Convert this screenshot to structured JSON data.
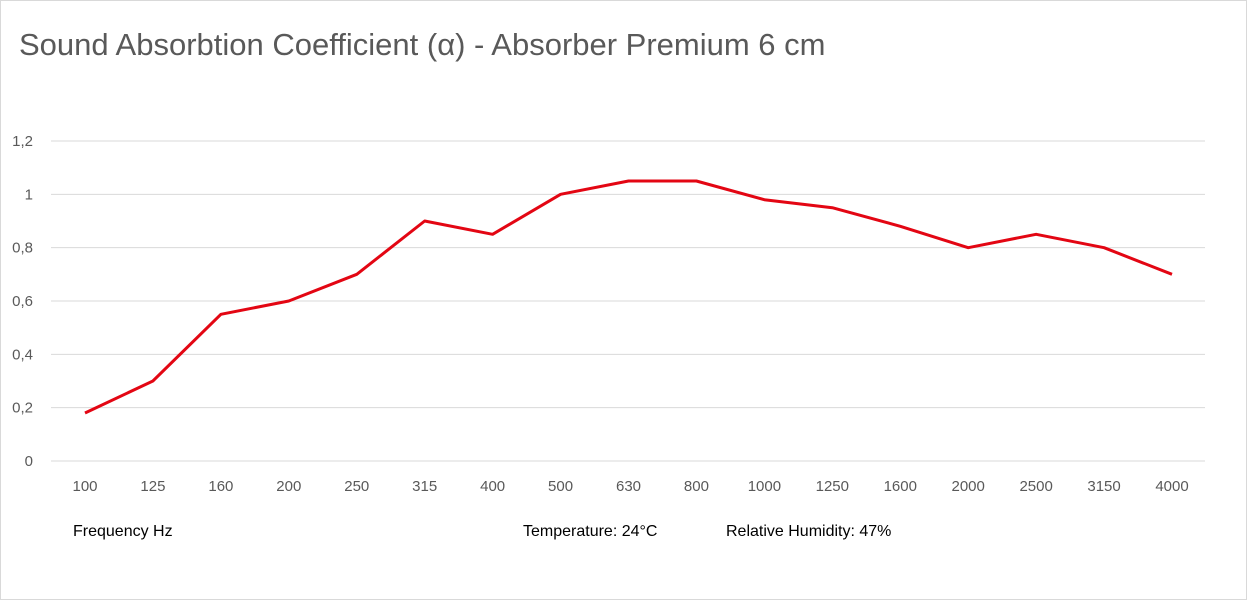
{
  "chart_data": {
    "type": "line",
    "title": "Sound Absorbtion Coefficient (α) - Absorber Premium 6 cm",
    "categories": [
      "100",
      "125",
      "160",
      "200",
      "250",
      "315",
      "400",
      "500",
      "630",
      "800",
      "1000",
      "1250",
      "1600",
      "2000",
      "2500",
      "3150",
      "4000"
    ],
    "series": [
      {
        "values": [
          0.18,
          0.3,
          0.55,
          0.6,
          0.7,
          0.9,
          0.85,
          1.0,
          1.05,
          1.05,
          0.98,
          0.95,
          0.88,
          0.8,
          0.85,
          0.8,
          0.7
        ],
        "color": "#e30613"
      }
    ],
    "ylim": [
      0,
      1.2
    ],
    "yticks": [
      0,
      0.2,
      0.4,
      0.6,
      0.8,
      1,
      1.2
    ],
    "ytick_labels": [
      "0",
      "0,2",
      "0,4",
      "0,6",
      "0,8",
      "1",
      "1,2"
    ],
    "grid": true,
    "legend": "none",
    "gridline_color": "#d9d9d9"
  },
  "footer": {
    "xlabel": "Frequency Hz",
    "temperature": "Temperature:  24°C",
    "humidity": "Relative Humidity: 47%"
  }
}
